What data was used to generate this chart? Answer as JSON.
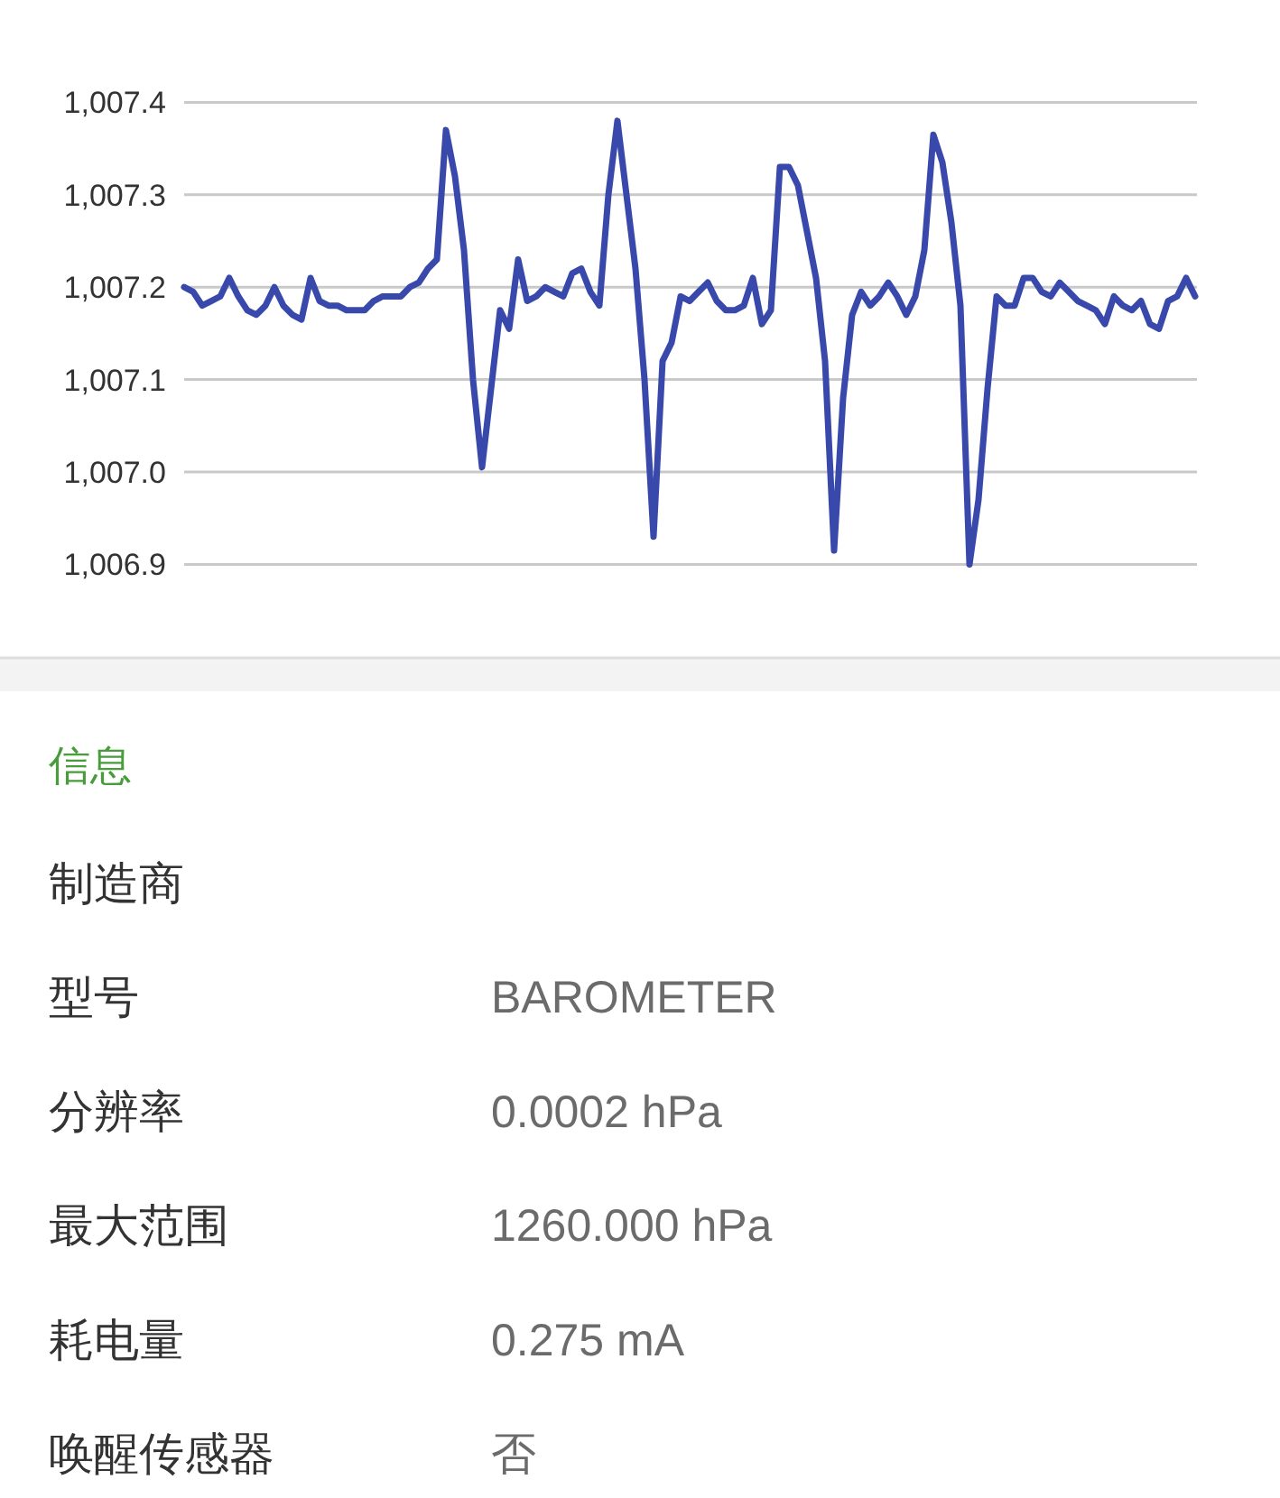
{
  "chart_data": [
    {
      "type": "line",
      "categories": [
        null,
        null,
        null,
        null,
        null,
        null,
        null,
        null,
        null,
        null,
        null,
        null,
        null,
        null,
        null,
        null,
        null,
        null,
        null,
        null,
        null,
        null,
        null,
        null,
        null,
        null,
        null,
        null,
        null,
        null,
        null,
        null,
        null,
        null,
        null,
        null,
        null,
        null,
        null,
        null,
        null,
        null,
        null,
        null,
        null,
        null,
        null,
        null,
        null,
        null,
        null,
        null,
        null,
        null,
        null,
        null,
        null,
        null,
        null,
        null,
        null,
        null,
        null,
        null,
        null,
        null,
        null,
        null,
        null,
        null,
        null,
        null,
        null,
        null,
        null,
        null,
        null,
        null,
        null,
        null,
        null,
        null,
        null,
        null,
        null,
        null,
        null,
        null,
        null,
        null,
        null,
        null,
        null,
        null,
        null,
        null,
        null,
        null,
        null,
        null,
        null,
        null,
        null,
        null,
        null,
        null,
        null,
        null,
        null,
        null,
        null,
        null,
        null
      ],
      "values": [
        1007.2,
        1007.195,
        1007.18,
        1007.185,
        1007.19,
        1007.21,
        1007.19,
        1007.175,
        1007.17,
        1007.18,
        1007.2,
        1007.18,
        1007.17,
        1007.165,
        1007.21,
        1007.185,
        1007.18,
        1007.18,
        1007.175,
        1007.175,
        1007.175,
        1007.185,
        1007.19,
        1007.19,
        1007.19,
        1007.2,
        1007.205,
        1007.22,
        1007.23,
        1007.37,
        1007.32,
        1007.24,
        1007.1,
        1007.005,
        1007.09,
        1007.175,
        1007.155,
        1007.23,
        1007.185,
        1007.19,
        1007.2,
        1007.195,
        1007.19,
        1007.215,
        1007.22,
        1007.195,
        1007.18,
        1007.3,
        1007.38,
        1007.3,
        1007.22,
        1007.1,
        1006.93,
        1007.12,
        1007.14,
        1007.19,
        1007.185,
        1007.195,
        1007.205,
        1007.185,
        1007.175,
        1007.175,
        1007.18,
        1007.21,
        1007.16,
        1007.175,
        1007.33,
        1007.33,
        1007.31,
        1007.26,
        1007.21,
        1007.12,
        1006.915,
        1007.08,
        1007.17,
        1007.195,
        1007.18,
        1007.19,
        1007.205,
        1007.19,
        1007.17,
        1007.19,
        1007.24,
        1007.365,
        1007.335,
        1007.27,
        1007.18,
        1006.9,
        1006.97,
        1007.09,
        1007.19,
        1007.18,
        1007.18,
        1007.21,
        1007.21,
        1007.195,
        1007.19,
        1007.205,
        1007.195,
        1007.185,
        1007.18,
        1007.175,
        1007.16,
        1007.19,
        1007.18,
        1007.175,
        1007.185,
        1007.16,
        1007.155,
        1007.185,
        1007.19,
        1007.21,
        1007.19
      ],
      "color": "#3949ab",
      "line_style": "solid",
      "ylim": [
        1006.9,
        1007.4
      ],
      "yticks": [
        {
          "value": 1006.9,
          "label": "1,006.9"
        },
        {
          "value": 1007.0,
          "label": "1,007.0"
        },
        {
          "value": 1007.1,
          "label": "1,007.1"
        },
        {
          "value": 1007.2,
          "label": "1,007.2"
        },
        {
          "value": 1007.3,
          "label": "1,007.3"
        },
        {
          "value": 1007.4,
          "label": "1,007.4"
        }
      ],
      "grid": "y",
      "tick_labels": "y"
    },
    {
      "type": "other",
      "title": "信息",
      "categories": [
        "制造商",
        "型号",
        "分辨率",
        "最大范围",
        "耗电量",
        "唤醒传感器"
      ],
      "value_labels": [
        null,
        "BAROMETER",
        "0.0002 hPa",
        "1260.000 hPa",
        "0.275 mA",
        "否"
      ]
    }
  ]
}
